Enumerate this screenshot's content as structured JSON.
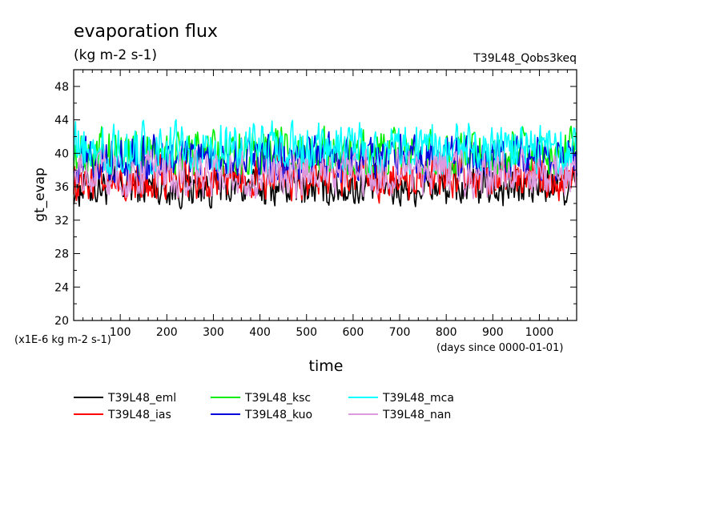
{
  "chart_data": {
    "type": "line",
    "title": "evaporation flux",
    "subtitle": "(kg m-2 s-1)",
    "run_label": "T39L48_Qobs3keq",
    "xlabel": "time",
    "x_unit_note": "(days since 0000-01-01)",
    "ylabel": "gt_evap",
    "y_scale_note": "(x1E-6 kg m-2 s-1)",
    "xlim": [
      0,
      1080
    ],
    "ylim": [
      20,
      50
    ],
    "x_ticks": [
      100,
      200,
      300,
      400,
      500,
      600,
      700,
      800,
      900,
      1000
    ],
    "x_tick_labels": [
      "100",
      "200",
      "300",
      "400",
      "500",
      "600",
      "700",
      "800",
      "900",
      "1000"
    ],
    "y_ticks": [
      20,
      24,
      28,
      32,
      36,
      40,
      44,
      48
    ],
    "y_tick_labels": [
      "20",
      "24",
      "28",
      "32",
      "36",
      "40",
      "44",
      "48"
    ],
    "grid": false,
    "legend_position": "bottom",
    "series": [
      {
        "name": "T39L48_eml",
        "color": "#000000",
        "x_range": [
          0,
          1080
        ],
        "mean": 36.0,
        "min": 33.1,
        "max": 38.8
      },
      {
        "name": "T39L48_ias",
        "color": "#ff0000",
        "x_range": [
          0,
          1080
        ],
        "mean": 37.0,
        "min": 34.0,
        "max": 40.0
      },
      {
        "name": "T39L48_ksc",
        "color": "#00ee00",
        "x_range": [
          0,
          1080
        ],
        "mean": 40.0,
        "min": 37.5,
        "max": 44.2
      },
      {
        "name": "T39L48_kuo",
        "color": "#0000dd",
        "x_range": [
          0,
          1080
        ],
        "mean": 39.3,
        "min": 36.5,
        "max": 43.0
      },
      {
        "name": "T39L48_mca",
        "color": "#00ffff",
        "x_range": [
          0,
          1080
        ],
        "mean": 40.5,
        "min": 37.5,
        "max": 45.0
      },
      {
        "name": "T39L48_nan",
        "color": "#dd99dd",
        "x_range": [
          0,
          1080
        ],
        "mean": 37.5,
        "min": 34.0,
        "max": 40.5
      }
    ]
  }
}
